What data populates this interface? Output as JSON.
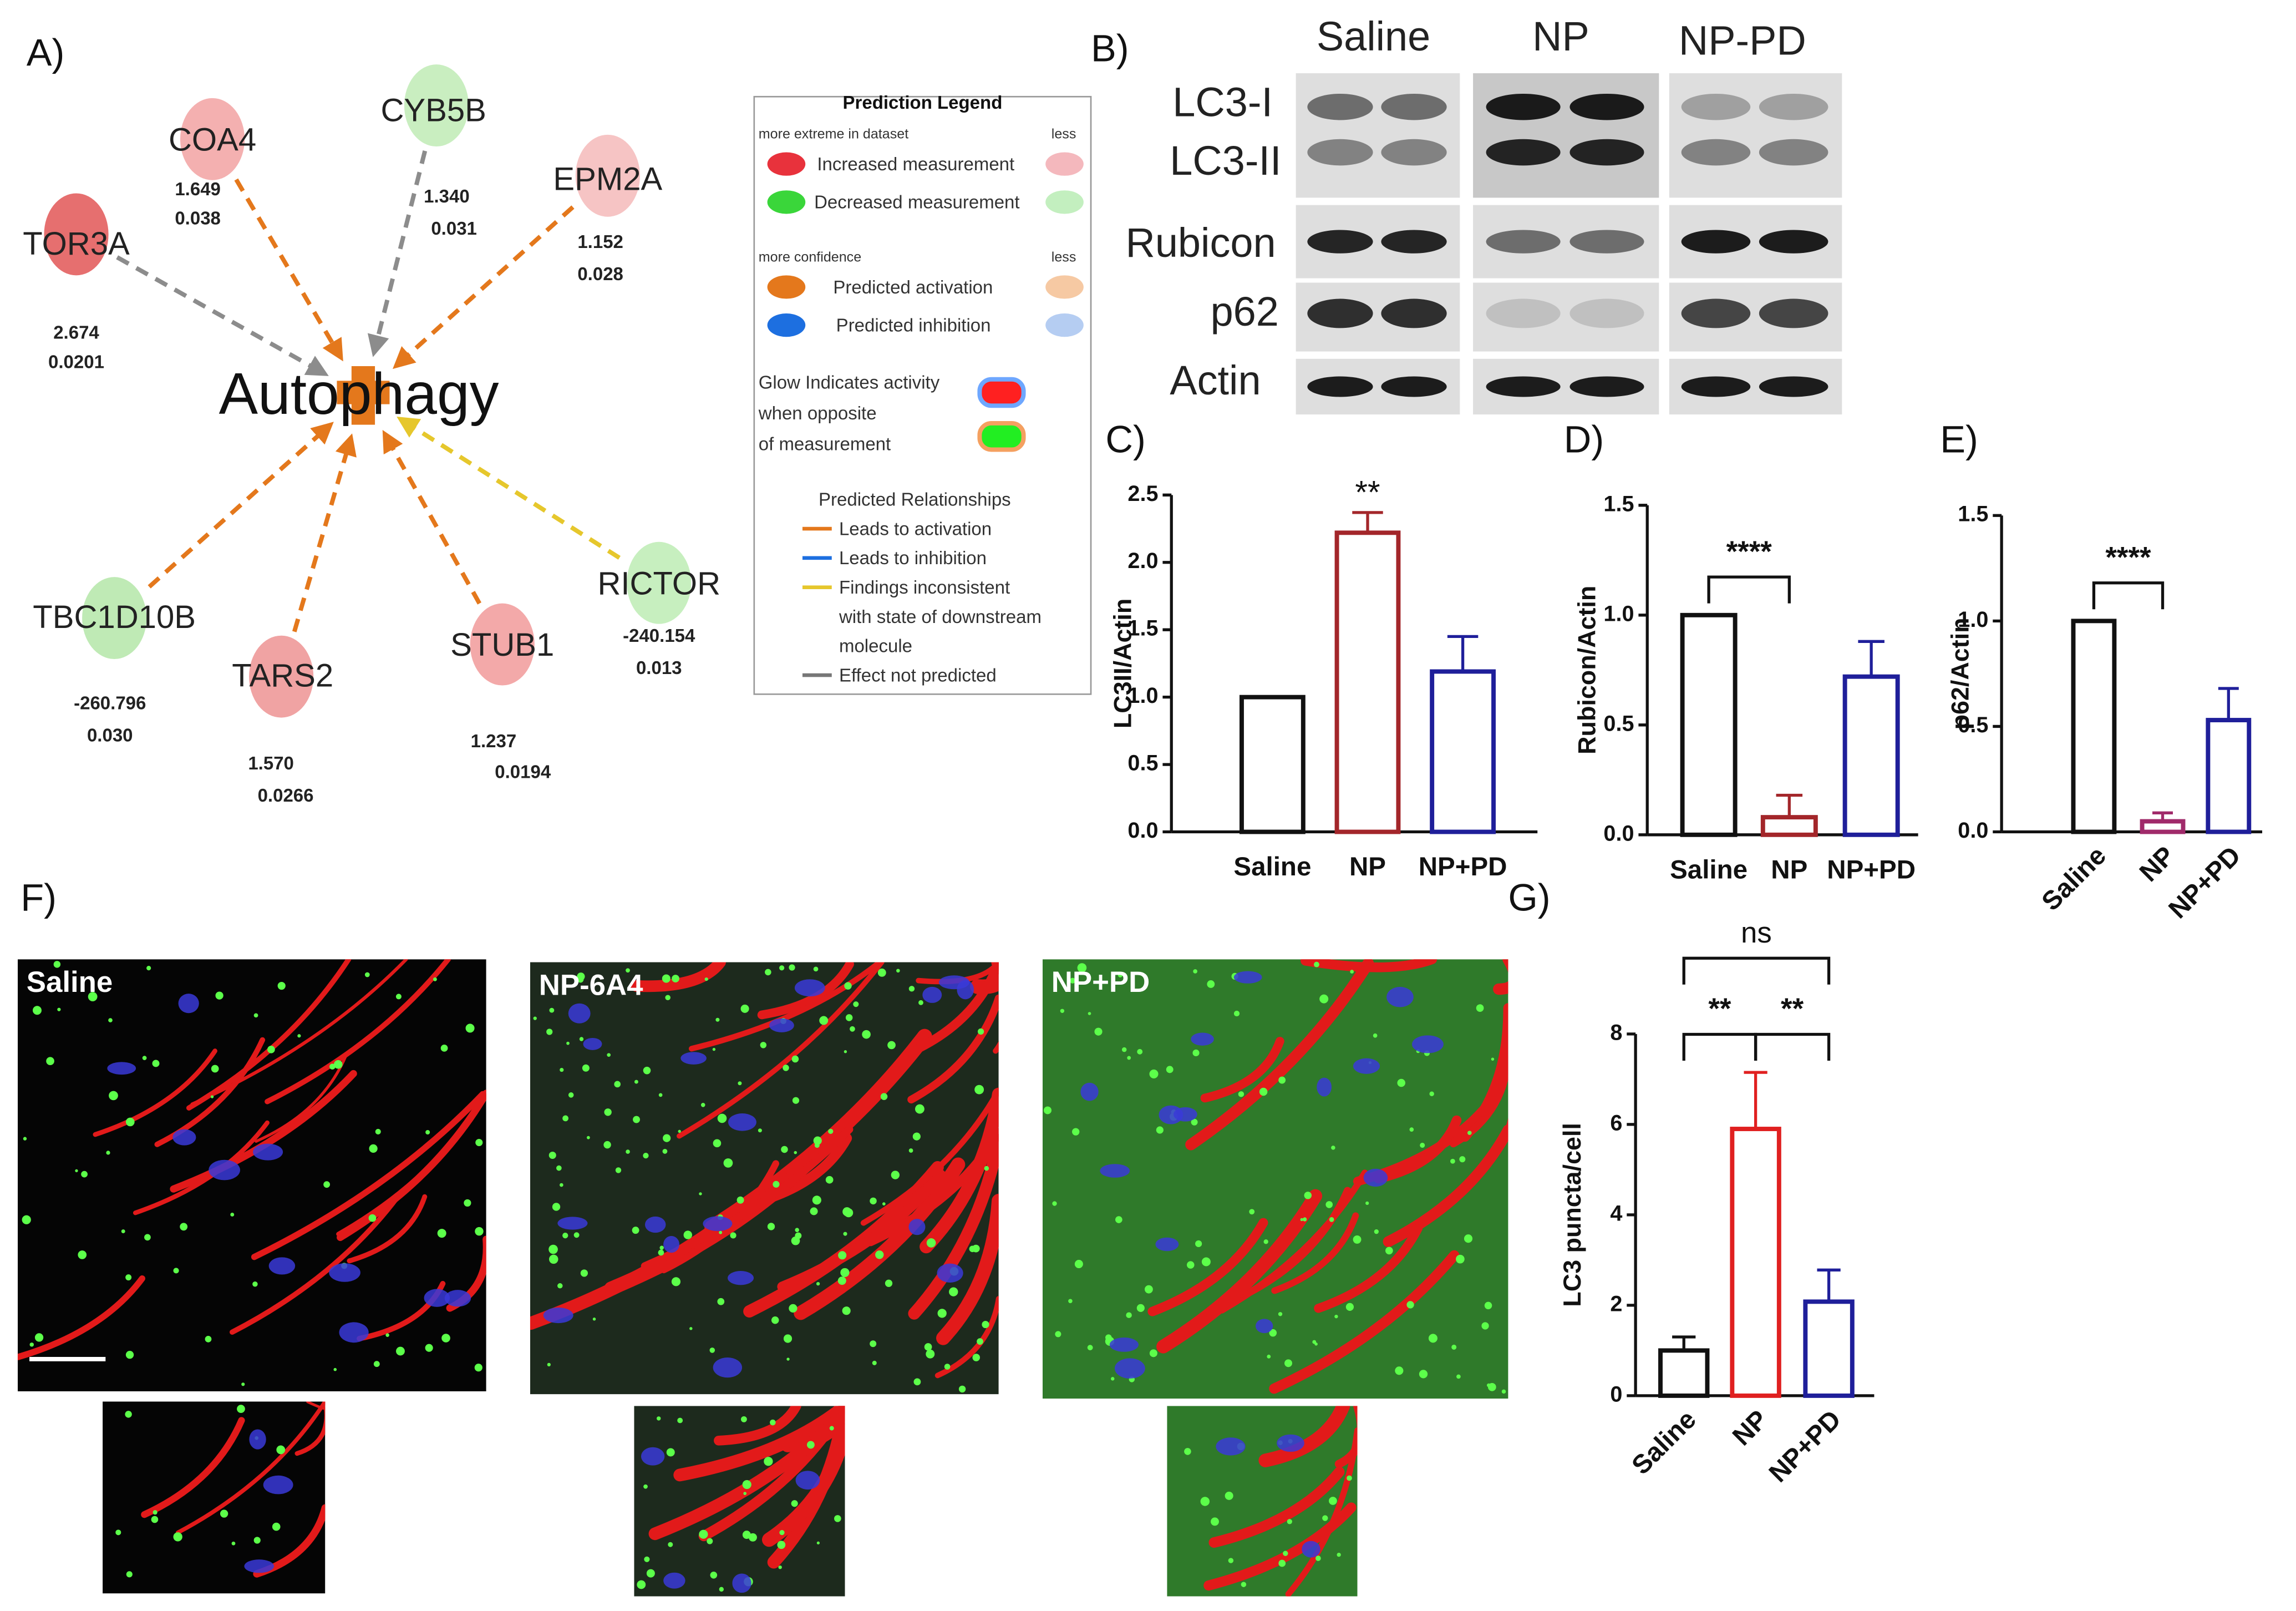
{
  "panel_labels": [
    "A)",
    "B)",
    "C)",
    "D)",
    "E)",
    "F)",
    "G)"
  ],
  "network": {
    "center": "Autophagy",
    "nodes": [
      {
        "label": "TOR3A",
        "values": [
          "2.674",
          "0.0201"
        ],
        "color": "#e66f6f",
        "edge": "#8c8c8c"
      },
      {
        "label": "COA4",
        "values": [
          "1.649",
          "0.038"
        ],
        "color": "#f4b0b0",
        "edge": "#e4781c"
      },
      {
        "label": "CYB5B",
        "values": [
          "1.340",
          "0.031"
        ],
        "color": "#c9eec0",
        "edge": "#8c8c8c"
      },
      {
        "label": "EPM2A",
        "values": [
          "1.152",
          "0.028"
        ],
        "color": "#f6c4c4",
        "edge": "#e4781c"
      },
      {
        "label": "TBC1D10B",
        "values": [
          "-260.796",
          "0.030"
        ],
        "color": "#bfeab5",
        "edge": "#e4781c"
      },
      {
        "label": "TARS2",
        "values": [
          "1.570",
          "0.0266"
        ],
        "color": "#f0a3a3",
        "edge": "#e4781c"
      },
      {
        "label": "STUB1",
        "values": [
          "1.237",
          "0.0194"
        ],
        "color": "#f3a9a9",
        "edge": "#e4781c"
      },
      {
        "label": "RICTOR",
        "values": [
          "-240.154",
          "0.013"
        ],
        "color": "#c7efbf",
        "edge": "#e6c72c"
      }
    ]
  },
  "legend": {
    "title": "Prediction Legend",
    "measurement": {
      "heading": "more extreme in dataset",
      "less": "less",
      "items": [
        "Increased measurement",
        "Decreased measurement"
      ]
    },
    "confidence": {
      "heading": "more confidence",
      "less": "less",
      "items": [
        "Predicted activation",
        "Predicted inhibition"
      ]
    },
    "glow": [
      "Glow Indicates activity",
      "when opposite",
      "of measurement"
    ],
    "relationships": {
      "heading": "Predicted Relationships",
      "items": [
        [
          "Leads to activation"
        ],
        [
          "Leads to inhibition"
        ],
        [
          "Findings inconsistent",
          "with state of downstream",
          "molecule"
        ],
        [
          "Effect not predicted"
        ]
      ]
    }
  },
  "blot": {
    "groups": [
      "Saline",
      "NP",
      "NP-PD"
    ],
    "rows": [
      "LC3-I",
      "LC3-II",
      "Rubicon",
      "p62",
      "Actin"
    ]
  },
  "micrographs": [
    "Saline",
    "NP-6A4",
    "NP+PD"
  ],
  "chart_data": [
    {
      "type": "bar",
      "ylabel": "LC3II/Actin",
      "categories": [
        "Saline",
        "NP",
        "NP+PD"
      ],
      "values": [
        1.0,
        2.22,
        1.19
      ],
      "errors": [
        0,
        0.15,
        0.26
      ],
      "colors": [
        "#111111",
        "#a3262a",
        "#1f1f9a"
      ],
      "ylim": [
        0,
        2.5
      ],
      "yticks": [
        {
          "value": 0,
          "label": "0.0"
        },
        0.5,
        {
          "value": 1,
          "label": "1.0"
        },
        1.5,
        {
          "value": 2,
          "label": "2.0"
        },
        2.5
      ],
      "annotations": [
        {
          "text": "**",
          "pair": [
            1,
            1
          ]
        }
      ]
    },
    {
      "type": "bar",
      "ylabel": "Rubicon/Actin",
      "categories": [
        "Saline",
        "NP",
        "NP+PD"
      ],
      "values": [
        1.0,
        0.08,
        0.72
      ],
      "errors": [
        0,
        0.1,
        0.16
      ],
      "colors": [
        "#111111",
        "#a3262a",
        "#1f1f9a"
      ],
      "ylim": [
        0,
        1.5
      ],
      "yticks": [
        {
          "value": 0,
          "label": "0.0"
        },
        0.5,
        {
          "value": 1,
          "label": "1.0"
        },
        1.5
      ],
      "annotations": [
        {
          "text": "****",
          "pair": [
            0,
            1
          ]
        }
      ]
    },
    {
      "type": "bar",
      "ylabel": "p62/Actin",
      "categories": [
        "Saline",
        "NP",
        "NP+PD"
      ],
      "values": [
        1.0,
        0.05,
        0.53
      ],
      "errors": [
        0,
        0.04,
        0.15
      ],
      "colors": [
        "#111111",
        "#a02a6a",
        "#1f1f9a"
      ],
      "ylim": [
        0,
        1.5
      ],
      "yticks": [
        {
          "value": 0,
          "label": "0.0"
        },
        0.5,
        {
          "value": 1,
          "label": "1.0"
        },
        1.5
      ],
      "annotations": [
        {
          "text": "****",
          "pair": [
            0,
            1
          ]
        }
      ]
    },
    {
      "type": "bar",
      "ylabel": "LC3 puncta/cell",
      "categories": [
        "Saline",
        "NP",
        "NP+PD"
      ],
      "values": [
        1.0,
        5.9,
        2.08
      ],
      "errors": [
        0.3,
        1.25,
        0.7
      ],
      "colors": [
        "#111111",
        "#e02020",
        "#1f1f9a"
      ],
      "ylim": [
        0,
        8
      ],
      "yticks": [
        0,
        2,
        4,
        6,
        8
      ],
      "annotations": [
        {
          "text": "**",
          "pair": [
            0,
            1
          ]
        },
        {
          "text": "**",
          "pair": [
            1,
            2
          ]
        },
        {
          "text": "ns",
          "pair": [
            0,
            2
          ]
        }
      ]
    }
  ]
}
